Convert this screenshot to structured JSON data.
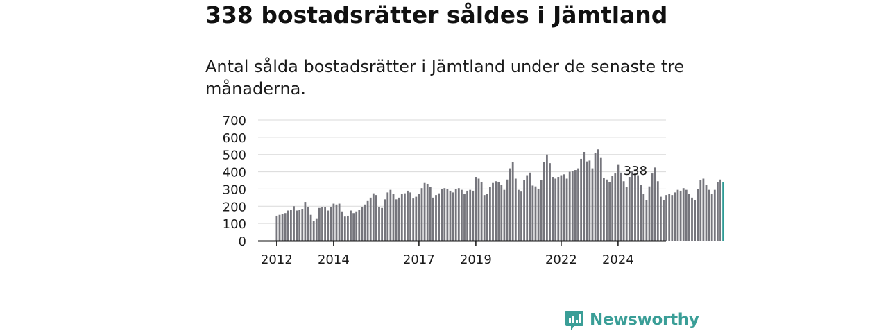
{
  "title": "338 bostadsrätter såldes i Jämtland",
  "subtitle": "Antal sålda bostadsrätter i Jämtland under de senaste tre månaderna.",
  "brand": {
    "name": "Newsworthy",
    "color": "#3a9e97"
  },
  "colors": {
    "bar": "#75757c",
    "highlight": "#2f9b95",
    "grid": "#d9d9d9",
    "axis": "#111111"
  },
  "chart_data": {
    "type": "bar",
    "ylim": [
      0,
      700
    ],
    "yticks": [
      0,
      100,
      200,
      300,
      400,
      500,
      600,
      700
    ],
    "xticks": [
      {
        "label": "2012",
        "index": 0
      },
      {
        "label": "2014",
        "index": 20
      },
      {
        "label": "2017",
        "index": 50
      },
      {
        "label": "2019",
        "index": 70
      },
      {
        "label": "2022",
        "index": 100
      },
      {
        "label": "2024",
        "index": 120
      }
    ],
    "annotation": {
      "label": "338",
      "index": 130
    },
    "values": [
      145,
      150,
      155,
      160,
      175,
      180,
      200,
      175,
      180,
      185,
      225,
      195,
      150,
      115,
      130,
      190,
      195,
      195,
      175,
      195,
      215,
      210,
      215,
      170,
      140,
      145,
      175,
      160,
      170,
      180,
      195,
      210,
      230,
      250,
      275,
      265,
      195,
      190,
      240,
      280,
      295,
      270,
      240,
      250,
      270,
      275,
      290,
      280,
      245,
      255,
      270,
      305,
      335,
      330,
      310,
      250,
      265,
      275,
      300,
      305,
      300,
      290,
      280,
      300,
      305,
      295,
      270,
      290,
      295,
      290,
      370,
      360,
      340,
      265,
      270,
      310,
      335,
      345,
      340,
      325,
      295,
      355,
      420,
      455,
      360,
      295,
      285,
      350,
      380,
      395,
      320,
      315,
      300,
      350,
      455,
      500,
      450,
      370,
      360,
      370,
      380,
      385,
      360,
      400,
      405,
      410,
      420,
      475,
      515,
      460,
      465,
      420,
      510,
      530,
      480,
      365,
      355,
      340,
      375,
      390,
      440,
      395,
      345,
      310,
      370,
      405,
      390,
      380,
      325,
      270,
      235,
      315,
      390,
      425,
      345,
      255,
      235,
      265,
      270,
      265,
      280,
      295,
      290,
      305,
      295,
      270,
      250,
      235,
      300,
      350,
      360,
      325,
      295,
      270,
      295,
      340,
      355,
      338
    ],
    "note": "Monthly values sampled as one bar per month; the last bar (338) is highlighted."
  }
}
